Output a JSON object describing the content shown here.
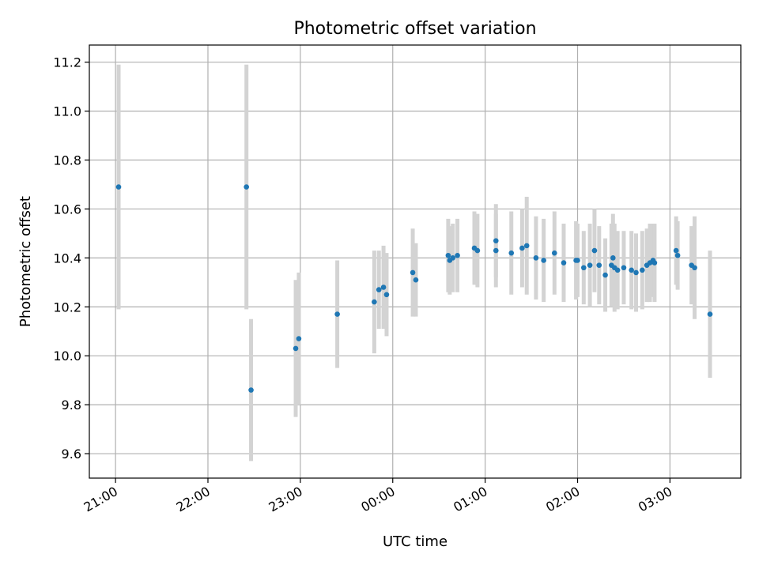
{
  "chart_data": {
    "type": "scatter",
    "title": "Photometric offset variation",
    "xlabel": "UTC time",
    "ylabel": "Photometric offset",
    "x_tick_labels": [
      "21:00",
      "22:00",
      "23:00",
      "00:00",
      "01:00",
      "02:00",
      "03:00"
    ],
    "y_tick_labels": [
      "9.6",
      "9.8",
      "10.0",
      "10.2",
      "10.4",
      "10.6",
      "10.8",
      "11.0",
      "11.2"
    ],
    "y_ticks": [
      9.6,
      9.8,
      10.0,
      10.2,
      10.4,
      10.6,
      10.8,
      11.0,
      11.2
    ],
    "x_ticks_time": [
      "21:00",
      "22:00",
      "23:00",
      "00:00",
      "01:00",
      "02:00",
      "03:00"
    ],
    "xlim_time": [
      "20:43",
      "03:46"
    ],
    "ylim": [
      9.5,
      11.27
    ],
    "grid": true,
    "point_color": "#1f77b4",
    "errorbar_color": "#d3d3d3",
    "series": [
      {
        "x": [
          "21:02",
          "22:25",
          "22:28",
          "22:57",
          "22:59",
          "23:24",
          "23:48",
          "23:51",
          "23:54",
          "23:56",
          "00:13",
          "00:15",
          "00:36",
          "00:37",
          "00:39",
          "00:42",
          "00:53",
          "00:55",
          "01:07",
          "01:07",
          "01:17",
          "01:24",
          "01:27",
          "01:33",
          "01:38",
          "01:45",
          "01:51",
          "01:59",
          "02:00",
          "02:04",
          "02:08",
          "02:11",
          "02:14",
          "02:18",
          "02:22",
          "02:23",
          "02:24",
          "02:26",
          "02:30",
          "02:35",
          "02:38",
          "02:42",
          "02:45",
          "02:47",
          "02:49",
          "02:50",
          "03:04",
          "03:05",
          "03:14",
          "03:16",
          "03:26"
        ],
        "y": [
          10.69,
          10.69,
          9.86,
          10.03,
          10.07,
          10.17,
          10.22,
          10.27,
          10.28,
          10.25,
          10.34,
          10.31,
          10.41,
          10.39,
          10.4,
          10.41,
          10.44,
          10.43,
          10.43,
          10.47,
          10.42,
          10.44,
          10.45,
          10.4,
          10.39,
          10.42,
          10.38,
          10.39,
          10.39,
          10.36,
          10.37,
          10.43,
          10.37,
          10.33,
          10.37,
          10.4,
          10.36,
          10.35,
          10.36,
          10.35,
          10.34,
          10.35,
          10.37,
          10.38,
          10.39,
          10.38,
          10.43,
          10.41,
          10.37,
          10.36,
          10.17
        ],
        "err": [
          0.5,
          0.5,
          0.29,
          0.28,
          0.27,
          0.22,
          0.21,
          0.16,
          0.17,
          0.17,
          0.18,
          0.15,
          0.15,
          0.14,
          0.14,
          0.15,
          0.15,
          0.15,
          0.15,
          0.15,
          0.17,
          0.16,
          0.2,
          0.17,
          0.17,
          0.17,
          0.16,
          0.16,
          0.15,
          0.15,
          0.17,
          0.17,
          0.16,
          0.15,
          0.17,
          0.18,
          0.18,
          0.16,
          0.15,
          0.16,
          0.16,
          0.16,
          0.15,
          0.16,
          0.15,
          0.16,
          0.14,
          0.14,
          0.16,
          0.21,
          0.26
        ]
      }
    ]
  }
}
